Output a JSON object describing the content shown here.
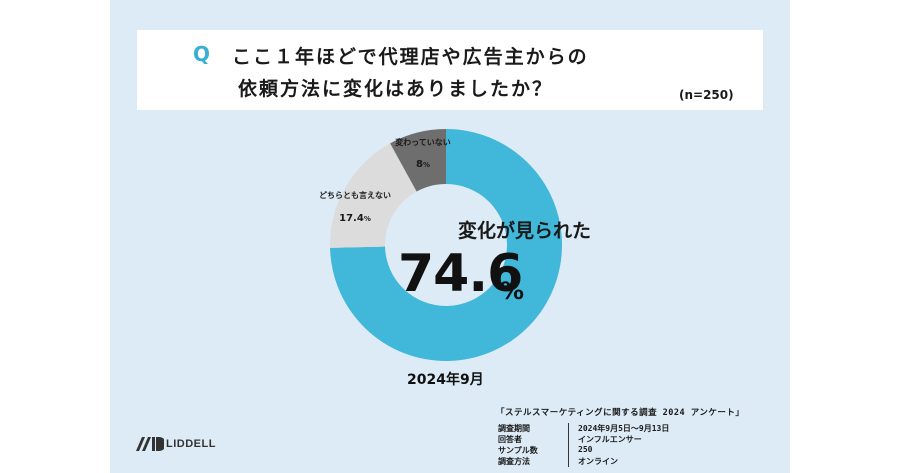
{
  "question": {
    "marker": "Q",
    "line1": "ここ１年ほどで代理店や広告主からの",
    "line2": "依頼方法に変化はありましたか？",
    "sample": "(n=250)"
  },
  "chart_data": {
    "type": "pie",
    "variant": "donut",
    "start_angle": "12 o'clock, clockwise",
    "slices": [
      {
        "label": "変化が見られた",
        "value": 74.6,
        "display": "74.6",
        "unit": "%",
        "color": "#41b7d9"
      },
      {
        "label": "どちらとも言えない",
        "value": 17.4,
        "display": "17.4",
        "unit": "%",
        "color": "#dcdcdc"
      },
      {
        "label": "変わっていない",
        "value": 8,
        "display": "8",
        "unit": "%",
        "color": "#6e6e6e"
      }
    ]
  },
  "date_label": "2024年9月",
  "survey": {
    "title": "「ステルスマーケティングに関する調査 2024 アンケート」",
    "rows": [
      {
        "key": "調査期間",
        "value": "2024年9月5日〜9月13日"
      },
      {
        "key": "回答者",
        "value": "インフルエンサー"
      },
      {
        "key": "サンプル数",
        "value": "250"
      },
      {
        "key": "調査方法",
        "value": "オンライン"
      }
    ]
  },
  "logo": {
    "text": "LIDDELL"
  },
  "colors": {
    "panel_bg": "#dcebf6",
    "accent": "#3aaed3"
  }
}
